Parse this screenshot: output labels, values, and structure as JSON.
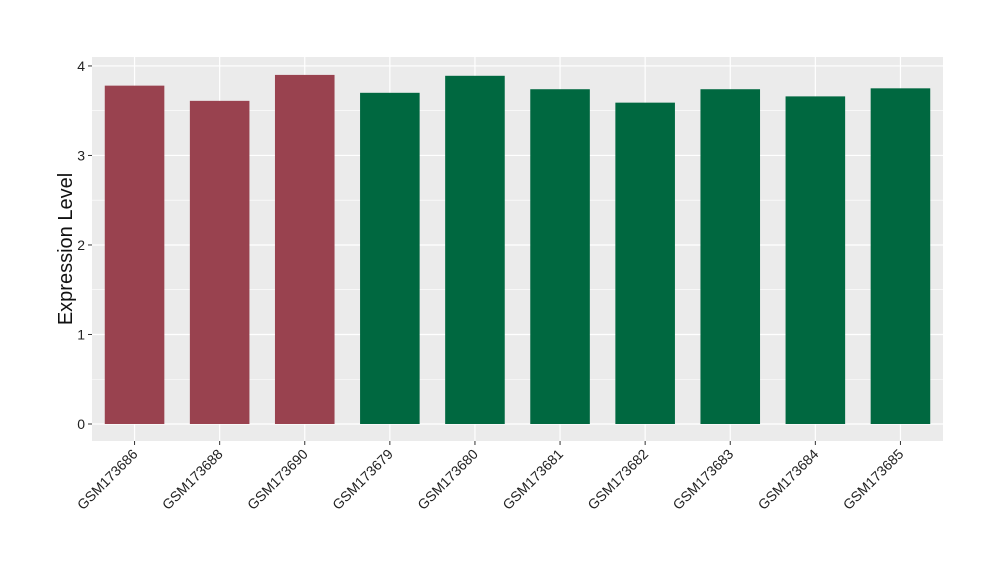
{
  "chart_data": {
    "type": "bar",
    "title": "",
    "xlabel": "",
    "ylabel": "Expression Level",
    "categories": [
      "GSM173686",
      "GSM173688",
      "GSM173690",
      "GSM173679",
      "GSM173680",
      "GSM173681",
      "GSM173682",
      "GSM173683",
      "GSM173684",
      "GSM173685"
    ],
    "values": [
      3.78,
      3.61,
      3.9,
      3.7,
      3.89,
      3.74,
      3.59,
      3.74,
      3.66,
      3.75
    ],
    "bar_colors": [
      "#99424F",
      "#99424F",
      "#99424F",
      "#006840",
      "#006840",
      "#006840",
      "#006840",
      "#006840",
      "#006840",
      "#006840"
    ],
    "ylim": [
      -0.19,
      4.1
    ],
    "yticks": [
      "0",
      "1",
      "2",
      "3",
      "4"
    ],
    "grid": true,
    "panel_background": "#EBEBEB",
    "legend": "none"
  }
}
